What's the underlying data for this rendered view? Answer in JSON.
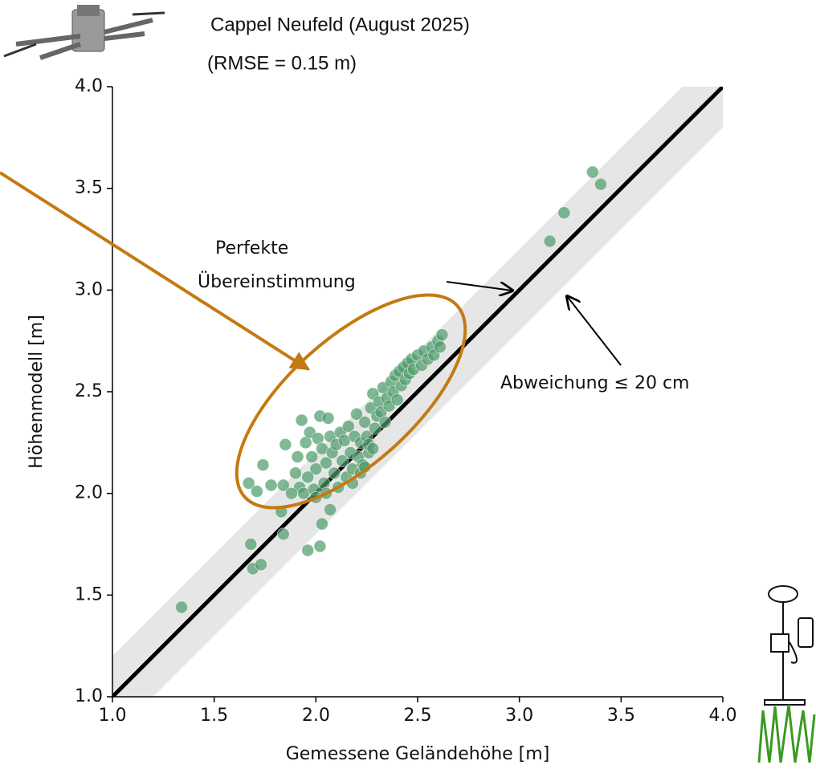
{
  "chart_data": {
    "type": "scatter",
    "title": "Cappel Neufeld (August 2025)",
    "subtitle": "(RMSE = 0.15 m)",
    "x_label": "Gemessene Geländehöhe [m]",
    "y_label": "Höhenmodell [m]",
    "annotations": [
      "Perfekte",
      "Übereinstimmung",
      "Abweichung ≤ 20 cm"
    ],
    "band": 0.2,
    "color": "#4c9a6a",
    "xlim": [
      1.0,
      4.0
    ],
    "ylim": [
      1.0,
      4.0
    ],
    "xticks": [
      {
        "value": 1.0,
        "label": "1.0"
      },
      {
        "value": 1.5,
        "label": "1.5"
      },
      {
        "value": 2.0,
        "label": "2.0"
      },
      {
        "value": 2.5,
        "label": "2.5"
      },
      {
        "value": 3.0,
        "label": "3.0"
      },
      {
        "value": 3.5,
        "label": "3.5"
      },
      {
        "value": 4.0,
        "label": "4.0"
      }
    ],
    "yticks": [
      {
        "value": 1.0,
        "label": "1.0"
      },
      {
        "value": 1.5,
        "label": "1.5"
      },
      {
        "value": 2.0,
        "label": "2.0"
      },
      {
        "value": 2.5,
        "label": "2.5"
      },
      {
        "value": 3.0,
        "label": "3.0"
      },
      {
        "value": 3.5,
        "label": "3.5"
      },
      {
        "value": 4.0,
        "label": "4.0"
      }
    ],
    "x": [
      1.34,
      3.15,
      3.22,
      3.36,
      3.4,
      1.67,
      1.68,
      1.69,
      1.73,
      1.71,
      1.74,
      1.78,
      1.84,
      1.83,
      1.84,
      1.85,
      1.96,
      2.02,
      2.03,
      2.07,
      1.93,
      1.95,
      1.97,
      1.98,
      2.0,
      2.01,
      2.02,
      2.03,
      2.04,
      2.05,
      2.06,
      2.07,
      2.08,
      2.09,
      2.1,
      2.11,
      2.12,
      2.13,
      2.14,
      2.15,
      2.16,
      2.17,
      2.18,
      2.19,
      2.2,
      2.21,
      2.22,
      2.23,
      2.24,
      2.25,
      2.26,
      2.27,
      2.28,
      2.29,
      2.3,
      2.31,
      2.32,
      2.33,
      2.34,
      2.35,
      2.36,
      2.37,
      2.38,
      2.39,
      2.4,
      2.41,
      2.42,
      2.43,
      2.44,
      2.45,
      2.46,
      2.47,
      2.48,
      2.5,
      2.52,
      2.53,
      2.55,
      2.57,
      2.58,
      2.6,
      2.61,
      2.62,
      1.9,
      1.92,
      1.94,
      1.96,
      1.99,
      2.0,
      2.05,
      1.91,
      1.88,
      2.22,
      2.24,
      2.26,
      2.28,
      2.18
    ],
    "y": [
      1.44,
      3.24,
      3.38,
      3.58,
      3.52,
      2.05,
      1.75,
      1.63,
      1.65,
      2.01,
      2.14,
      2.04,
      2.04,
      1.91,
      1.8,
      2.24,
      1.72,
      1.74,
      1.85,
      1.92,
      2.36,
      2.25,
      2.3,
      2.18,
      2.12,
      2.27,
      2.38,
      2.22,
      2.05,
      2.15,
      2.37,
      2.28,
      2.2,
      2.1,
      2.24,
      2.03,
      2.3,
      2.16,
      2.26,
      2.08,
      2.33,
      2.2,
      2.12,
      2.28,
      2.39,
      2.18,
      2.25,
      2.14,
      2.35,
      2.28,
      2.2,
      2.42,
      2.49,
      2.32,
      2.38,
      2.45,
      2.4,
      2.52,
      2.35,
      2.47,
      2.43,
      2.55,
      2.5,
      2.58,
      2.46,
      2.6,
      2.53,
      2.62,
      2.56,
      2.64,
      2.59,
      2.66,
      2.61,
      2.68,
      2.63,
      2.7,
      2.66,
      2.72,
      2.68,
      2.75,
      2.72,
      2.78,
      2.1,
      2.03,
      2.0,
      2.08,
      2.02,
      1.98,
      2.0,
      2.18,
      2.0,
      2.1,
      2.13,
      2.24,
      2.22,
      2.05
    ]
  }
}
